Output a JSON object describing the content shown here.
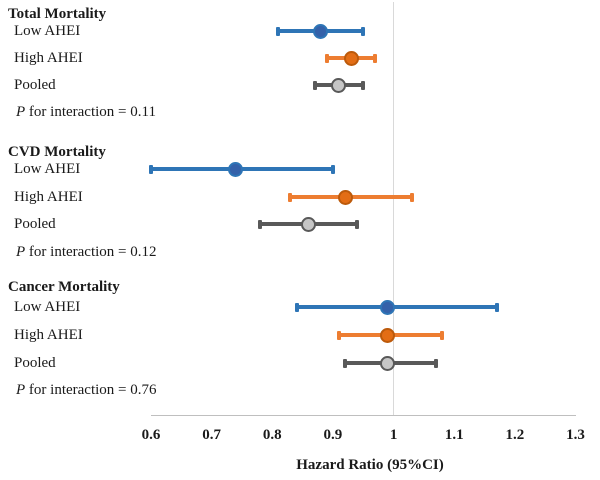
{
  "chart_data": {
    "type": "scatter",
    "variant": "forest-plot",
    "title": "",
    "xlabel": "Hazard Ratio (95%CI)",
    "xlim": [
      0.6,
      1.3
    ],
    "x_ticks": [
      0.6,
      0.7,
      0.8,
      0.9,
      1,
      1.1,
      1.2,
      1.3
    ],
    "x_tick_labels": [
      "0.6",
      "0.7",
      "0.8",
      "0.9",
      "1",
      "1.1",
      "1.2",
      "1.3"
    ],
    "reference_x": 1,
    "grid": false,
    "legend": "none",
    "colors": {
      "blue_line": "#2e75b6",
      "blue_fill": "#3461a9",
      "blue_border": "#2e75b6",
      "orange_line": "#ed7d31",
      "orange_fill": "#e36d15",
      "orange_border": "#bc5a0b",
      "gray_line": "#595959",
      "gray_fill": "#c6c6c6",
      "gray_border": "#595959",
      "axis_line": "#bfbfbf",
      "reference_line": "#d9d9d9",
      "text": "#1a1a1a"
    },
    "sections": [
      {
        "title": "Total Mortality",
        "p_italic": "P",
        "p_text": " for interaction = 0.11",
        "p_value": 0.11,
        "rows": [
          {
            "label": "Low AHEI",
            "series": "blue",
            "hr": 0.88,
            "ci_low": 0.81,
            "ci_high": 0.95
          },
          {
            "label": "High AHEI",
            "series": "orange",
            "hr": 0.93,
            "ci_low": 0.89,
            "ci_high": 0.97
          },
          {
            "label": "Pooled",
            "series": "gray",
            "hr": 0.91,
            "ci_low": 0.87,
            "ci_high": 0.95
          }
        ]
      },
      {
        "title": "CVD Mortality",
        "p_italic": "P",
        "p_text": " for interaction = 0.12",
        "p_value": 0.12,
        "rows": [
          {
            "label": "Low AHEI",
            "series": "blue",
            "hr": 0.74,
            "ci_low": 0.6,
            "ci_high": 0.9
          },
          {
            "label": "High AHEI",
            "series": "orange",
            "hr": 0.92,
            "ci_low": 0.83,
            "ci_high": 1.03
          },
          {
            "label": "Pooled",
            "series": "gray",
            "hr": 0.86,
            "ci_low": 0.78,
            "ci_high": 0.94
          }
        ]
      },
      {
        "title": "Cancer Mortality",
        "p_italic": "P",
        "p_text": " for interaction = 0.76",
        "p_value": 0.76,
        "rows": [
          {
            "label": "Low AHEI",
            "series": "blue",
            "hr": 0.99,
            "ci_low": 0.84,
            "ci_high": 1.17
          },
          {
            "label": "High AHEI",
            "series": "orange",
            "hr": 0.99,
            "ci_low": 0.91,
            "ci_high": 1.08
          },
          {
            "label": "Pooled",
            "series": "gray",
            "hr": 0.99,
            "ci_low": 0.92,
            "ci_high": 1.07
          }
        ]
      }
    ]
  }
}
